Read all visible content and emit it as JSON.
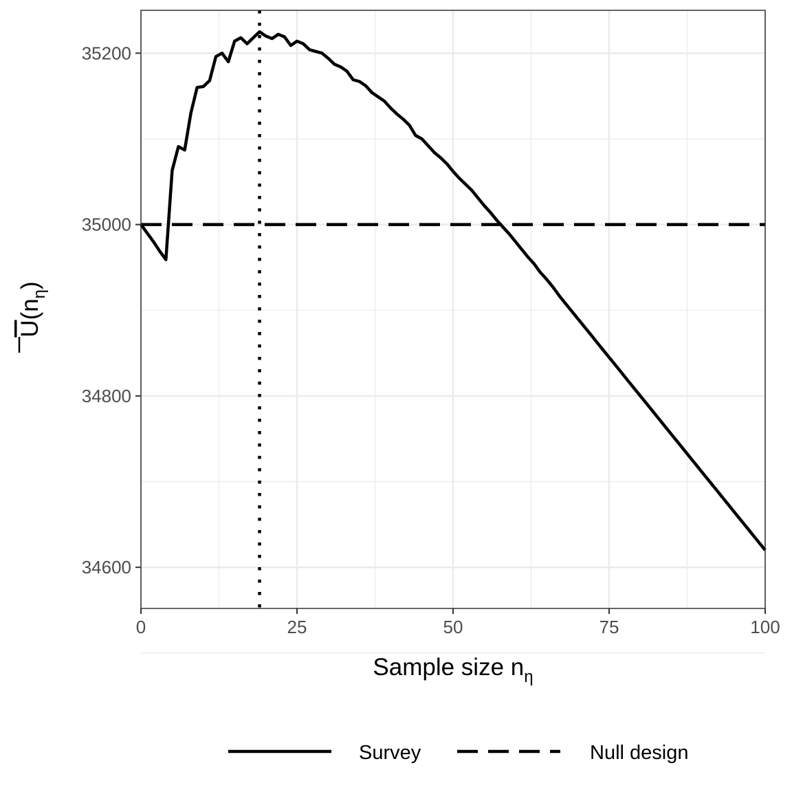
{
  "chart_data": {
    "type": "line",
    "title": "",
    "xlabel": "Sample size n",
    "xlabel_subscript": "η",
    "ylabel": "U",
    "ylabel_paren_open": "(",
    "ylabel_inner": "n",
    "ylabel_subscript": "η",
    "ylabel_paren_close": ")",
    "xlim": [
      0,
      100
    ],
    "ylim": [
      34552,
      35250
    ],
    "xticks": [
      0,
      25,
      50,
      75,
      100
    ],
    "xtick_labels": [
      "0",
      "25",
      "50",
      "75",
      "100"
    ],
    "yticks": [
      34600,
      34800,
      35000,
      35200
    ],
    "ytick_labels": [
      "34600",
      "34800",
      "35000",
      "35200"
    ],
    "grid": true,
    "legend_position": "bottom",
    "vline_x": 19,
    "series": [
      {
        "name": "Survey",
        "style": "solid",
        "x_start": 0,
        "x_step": 1,
        "values": [
          35000,
          34990,
          34980,
          34969,
          34959,
          35063,
          35091,
          35087,
          35130,
          35160,
          35161,
          35168,
          35196,
          35200,
          35190,
          35214,
          35218,
          35211,
          35218,
          35225,
          35220,
          35217,
          35222,
          35219,
          35209,
          35214,
          35211,
          35204,
          35202,
          35200,
          35194,
          35187,
          35184,
          35179,
          35169,
          35167,
          35162,
          35154,
          35149,
          35144,
          35136,
          35129,
          35123,
          35116,
          35104,
          35100,
          35092,
          35084,
          35078,
          35071,
          35062,
          35054,
          35047,
          35040,
          35031,
          35022,
          35014,
          35005,
          34997,
          34989,
          34980,
          34971,
          34962,
          34954,
          34944,
          34936,
          34927,
          34917,
          34908,
          34899,
          34890,
          34881,
          34872,
          34863,
          34854,
          34845,
          34836,
          34827,
          34818,
          34809,
          34800,
          34791,
          34782,
          34773,
          34764,
          34755,
          34746,
          34737,
          34728,
          34719,
          34710,
          34701,
          34692,
          34683,
          34674,
          34665,
          34656,
          34647,
          34638,
          34629,
          34620
        ]
      },
      {
        "name": "Null design",
        "style": "dashed",
        "x": [
          0,
          100
        ],
        "values": [
          35000,
          35000
        ]
      }
    ]
  }
}
